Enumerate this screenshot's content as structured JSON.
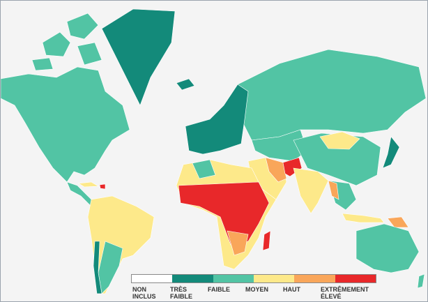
{
  "legend": {
    "items": [
      {
        "label": "NON INCLUS",
        "color": "#ffffff"
      },
      {
        "label": "TRÈS FAIBLE",
        "color": "#138a7a"
      },
      {
        "label": "FAIBLE",
        "color": "#52c4a4"
      },
      {
        "label": "MOYEN",
        "color": "#fde98a"
      },
      {
        "label": "HAUT",
        "color": "#f9a65a"
      },
      {
        "label": "EXTRÊMEMENT ÉLEVÉ",
        "color": "#e8282a"
      }
    ]
  }
}
